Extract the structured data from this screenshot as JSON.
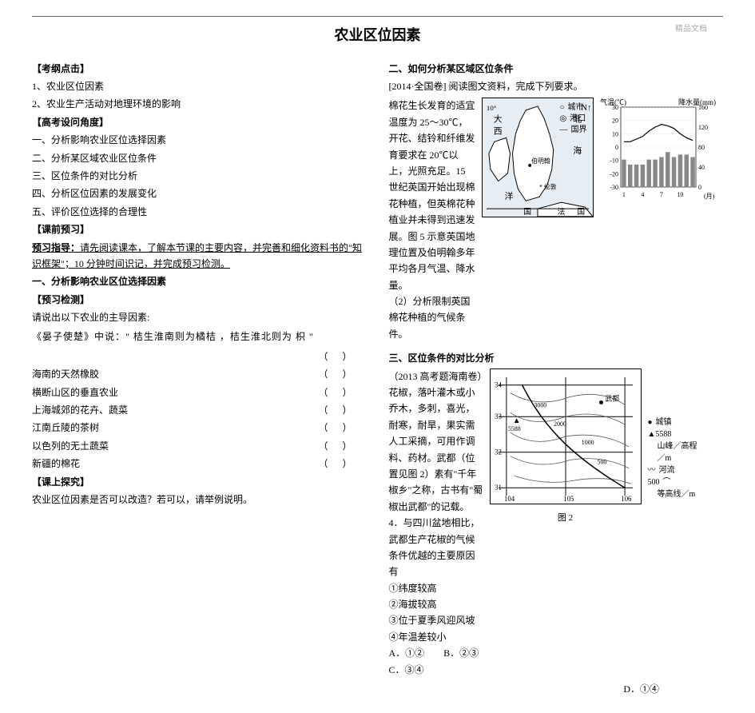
{
  "meta": {
    "watermark": "精品文档"
  },
  "title": "农业区位因素",
  "left": {
    "kaogang_label": "【考纲点击】",
    "kaogang_items": [
      "1、农业区位因素",
      "2、农业生产活动对地理环境的影响"
    ],
    "gaokao_label": "【高考设问角度】",
    "gaokao_items": [
      "一、分析影响农业区位选择因素",
      "二、分析某区域农业区位条件",
      "三、区位条件的对比分析",
      "四、分析区位因素的发展变化",
      "五、评价区位选择的合理性"
    ],
    "keqian_label": "【课前预习】",
    "preview_guide_label": "预习指导：",
    "preview_guide_text": "请先阅读课本，了解本节课的主要内容，并完善和细化资料书的\"知识框架\"；10 分钟时间识记，并完成预习检测。",
    "section1_title": "一、分析影响农业区位选择因素",
    "yuxi_label": "【预习检测】",
    "yuxi_intro": "请说出以下农业的主导因素:",
    "quote": "《晏子使楚》中说：\" 桔生淮南则为橘桔 ，桔生淮北则为 枳 \"",
    "items": [
      "海南的天然橡胶",
      "横断山区的垂直农业",
      "上海城郊的花卉、蔬菜",
      "江南丘陵的茶树",
      "以色列的无土蔬菜",
      "新疆的棉花"
    ],
    "paren_placeholder": "（）",
    "keshang_label": "【课上探究】",
    "keshang_q": "农业区位因素是否可以改造？若可以，请举例说明。"
  },
  "right": {
    "section2_title": "二、如何分析某区域区位条件",
    "section2_src": "[2014·全国卷]  阅读图文资料，完成下列要求。",
    "section2_body1": "棉花生长发育的适宜温度为 25～30℃，开花、结铃和纤维发育要求在 20℃以上，光照充足。15 世纪英国开始出现棉花种植，但英棉花种植业并未得到迅速发展。图 5 示意英国地理位置及伯明翰多年平均各月气温、降水量。",
    "section2_q": "（2）分析限制英国棉花种植的气候条件。",
    "map1": {
      "lat_labels": [
        "10°",
        "洋"
      ],
      "text_in_map": [
        "大",
        "西",
        "洋",
        "* 伦敦",
        "伯明翰",
        "国",
        "法",
        "北",
        "海"
      ],
      "sea_color": "#d9e8f0",
      "land_color": "#ffffff",
      "border_color": "#000000"
    },
    "chart1": {
      "type": "bar_line_combo",
      "title_left": "气温(℃)",
      "title_right": "降水量(mm)",
      "x_label": "(月)",
      "x_ticks": [
        "1",
        "4",
        "7",
        "10"
      ],
      "temp_y": [
        30,
        20,
        10,
        0,
        -10,
        -20,
        -30
      ],
      "precip_y": [
        160,
        120,
        80,
        40,
        0
      ],
      "temp_values": [
        4,
        4,
        6,
        8,
        12,
        15,
        17,
        16,
        14,
        10,
        7,
        5
      ],
      "precip_values": [
        55,
        45,
        45,
        45,
        55,
        55,
        60,
        70,
        60,
        65,
        65,
        60
      ],
      "bar_color": "#888888",
      "line_color": "#000000",
      "grid_color": "#bbbbbb",
      "label_fontsize": 9
    },
    "legend1": {
      "city": "城市",
      "port": "港口",
      "border": "国界"
    },
    "section3_title": "三、区位条件的对比分析",
    "section3_body": "（2013 高考题海南卷）花椒，落叶灌木或小乔木，多刺，喜光，耐寒，耐旱，果实需人工采摘，可用作调料、药材。武都（位置见图 2）素有\"千年椒乡\"之称，古书有\"蜀椒出武都\"的记载。",
    "section3_q": "4．与四川盆地相比，武都生产花椒的气候条件优越的主要原因有",
    "section3_opts_list": [
      "①纬度较高",
      "②海拔较高",
      "③位于夏季风迎风坡",
      "④年温差较小"
    ],
    "section3_choices": "A．①②　　B．②③　　C．③④",
    "section3_choice_d": "D．①④",
    "map2": {
      "lon_labels": [
        "104",
        "105",
        "106"
      ],
      "lat_labels": [
        "31",
        "32",
        "33",
        "34"
      ],
      "contours": [
        "2000",
        "3000",
        "3000",
        "1000",
        "500"
      ],
      "peak": "▲5588",
      "city": "武都",
      "river_color": "#000000",
      "contour_color": "#333333",
      "border_color": "#000000",
      "caption": "图 2"
    },
    "legend2": {
      "town": "城镇",
      "peak": "山峰／高程／m",
      "river": "河流",
      "contour": "等高线／m",
      "peak_symbol": "▲5588",
      "contour_symbol": "500"
    }
  }
}
